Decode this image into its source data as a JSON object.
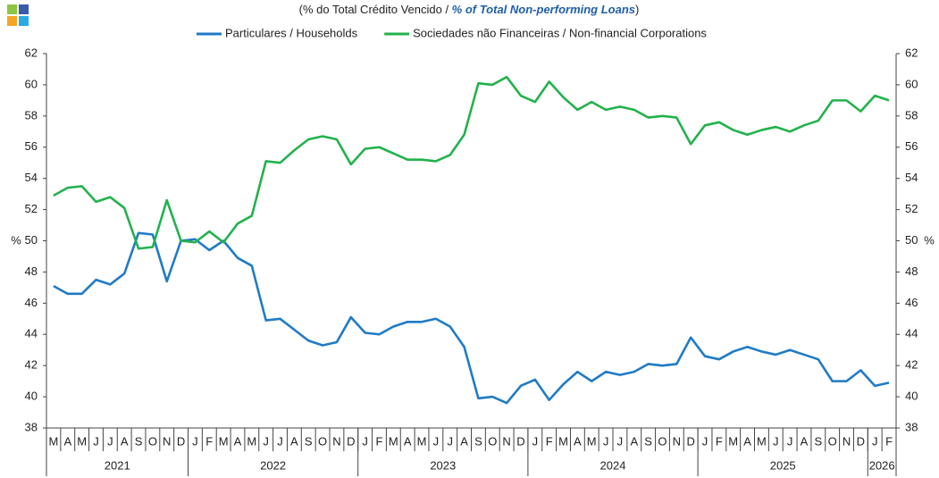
{
  "chart_data": {
    "type": "line",
    "title_parts": [
      "(% do Total  Crédito Vencido / ",
      "% of Total Non-performing Loans",
      ")"
    ],
    "ylabel": "%",
    "y2label": "%",
    "categories": [
      "M",
      "A",
      "M",
      "J",
      "J",
      "A",
      "S",
      "O",
      "N",
      "D",
      "J",
      "F",
      "M",
      "A",
      "M",
      "J",
      "J",
      "A",
      "S",
      "O",
      "N",
      "D",
      "J",
      "F",
      "M",
      "A",
      "M",
      "J",
      "J",
      "A",
      "S",
      "O",
      "N",
      "D",
      "J",
      "F",
      "M",
      "A",
      "M",
      "J",
      "J",
      "A",
      "S",
      "O",
      "N",
      "D",
      "J",
      "F",
      "M",
      "A",
      "M",
      "J",
      "J",
      "A",
      "S",
      "O",
      "N",
      "D",
      "J",
      "F"
    ],
    "years": [
      "2021",
      "2022",
      "2023",
      "2024",
      "2025",
      "2026"
    ],
    "series": [
      {
        "name": "Particulares / Households",
        "color": "#1f7bc6",
        "values": [
          47.1,
          46.6,
          46.6,
          47.5,
          47.2,
          47.9,
          50.5,
          50.4,
          47.4,
          50.0,
          50.1,
          49.4,
          50.0,
          48.9,
          48.4,
          44.9,
          45.0,
          44.3,
          43.6,
          43.3,
          43.5,
          45.1,
          44.1,
          44.0,
          44.5,
          44.8,
          44.8,
          45.0,
          44.5,
          43.2,
          39.9,
          40.0,
          39.6,
          40.7,
          41.1,
          39.8,
          40.8,
          41.6,
          41.0,
          41.6,
          41.4,
          41.6,
          42.1,
          42.0,
          42.1,
          43.8,
          42.6,
          42.4,
          42.9,
          43.2,
          42.9,
          42.7,
          43.0,
          42.7,
          42.4,
          41.0,
          41.0,
          41.7,
          40.7,
          40.9
        ]
      },
      {
        "name": "Sociedades não Financeiras / Non-financial Corporations",
        "color": "#22b24c",
        "values": [
          52.9,
          53.4,
          53.5,
          52.5,
          52.8,
          52.1,
          49.5,
          49.6,
          52.6,
          50.0,
          49.9,
          50.6,
          49.9,
          51.1,
          51.6,
          55.1,
          55.0,
          55.8,
          56.5,
          56.7,
          56.5,
          54.9,
          55.9,
          56.0,
          55.6,
          55.2,
          55.2,
          55.1,
          55.5,
          56.8,
          60.1,
          60.0,
          60.5,
          59.3,
          58.9,
          60.2,
          59.2,
          58.4,
          58.9,
          58.4,
          58.6,
          58.4,
          57.9,
          58.0,
          57.9,
          56.2,
          57.4,
          57.6,
          57.1,
          56.8,
          57.1,
          57.3,
          57.0,
          57.4,
          57.7,
          59.0,
          59.0,
          58.3,
          59.3,
          59.0
        ]
      }
    ],
    "ylim": [
      38,
      62
    ],
    "yticks": [
      38,
      40,
      42,
      44,
      46,
      48,
      50,
      52,
      54,
      56,
      58,
      60,
      62
    ],
    "y2lim": [
      38,
      62
    ],
    "y2ticks": [
      38,
      40,
      42,
      44,
      46,
      48,
      50,
      52,
      54,
      56,
      58,
      60,
      62
    ]
  }
}
